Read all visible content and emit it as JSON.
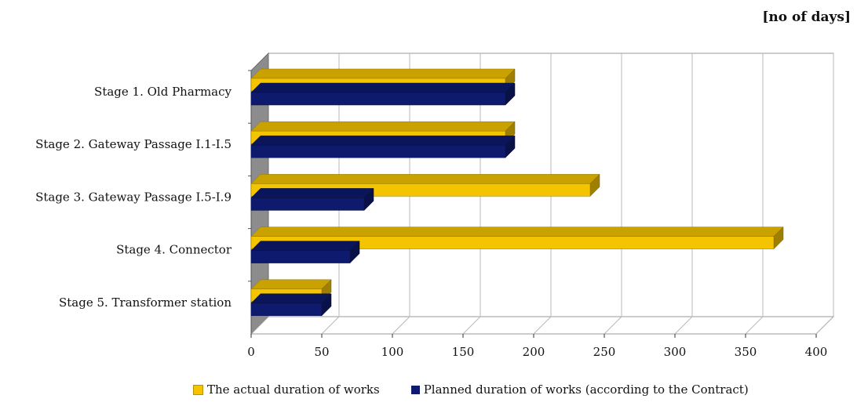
{
  "unit_label": "[no of days]",
  "chart_data": {
    "type": "bar",
    "orientation": "horizontal",
    "three_d": true,
    "categories": [
      "Stage 1. Old Pharmacy",
      "Stage 2. Gateway Passage I.1-I.5",
      "Stage 3. Gateway Passage I.5-I.9",
      "Stage 4. Connector",
      "Stage 5. Transformer station"
    ],
    "series": [
      {
        "name": "The actual duration of  works",
        "color": "#F5C400",
        "values": [
          180,
          180,
          240,
          370,
          50
        ]
      },
      {
        "name": "Planned duration of works (according to the Contract)",
        "color": "#0D1A6E",
        "values": [
          180,
          180,
          80,
          70,
          50
        ]
      }
    ],
    "xlim": [
      0,
      400
    ],
    "xticks": [
      "0",
      "50",
      "100",
      "150",
      "200",
      "250",
      "300",
      "350",
      "400"
    ],
    "grid": true,
    "legend_position": "bottom"
  }
}
